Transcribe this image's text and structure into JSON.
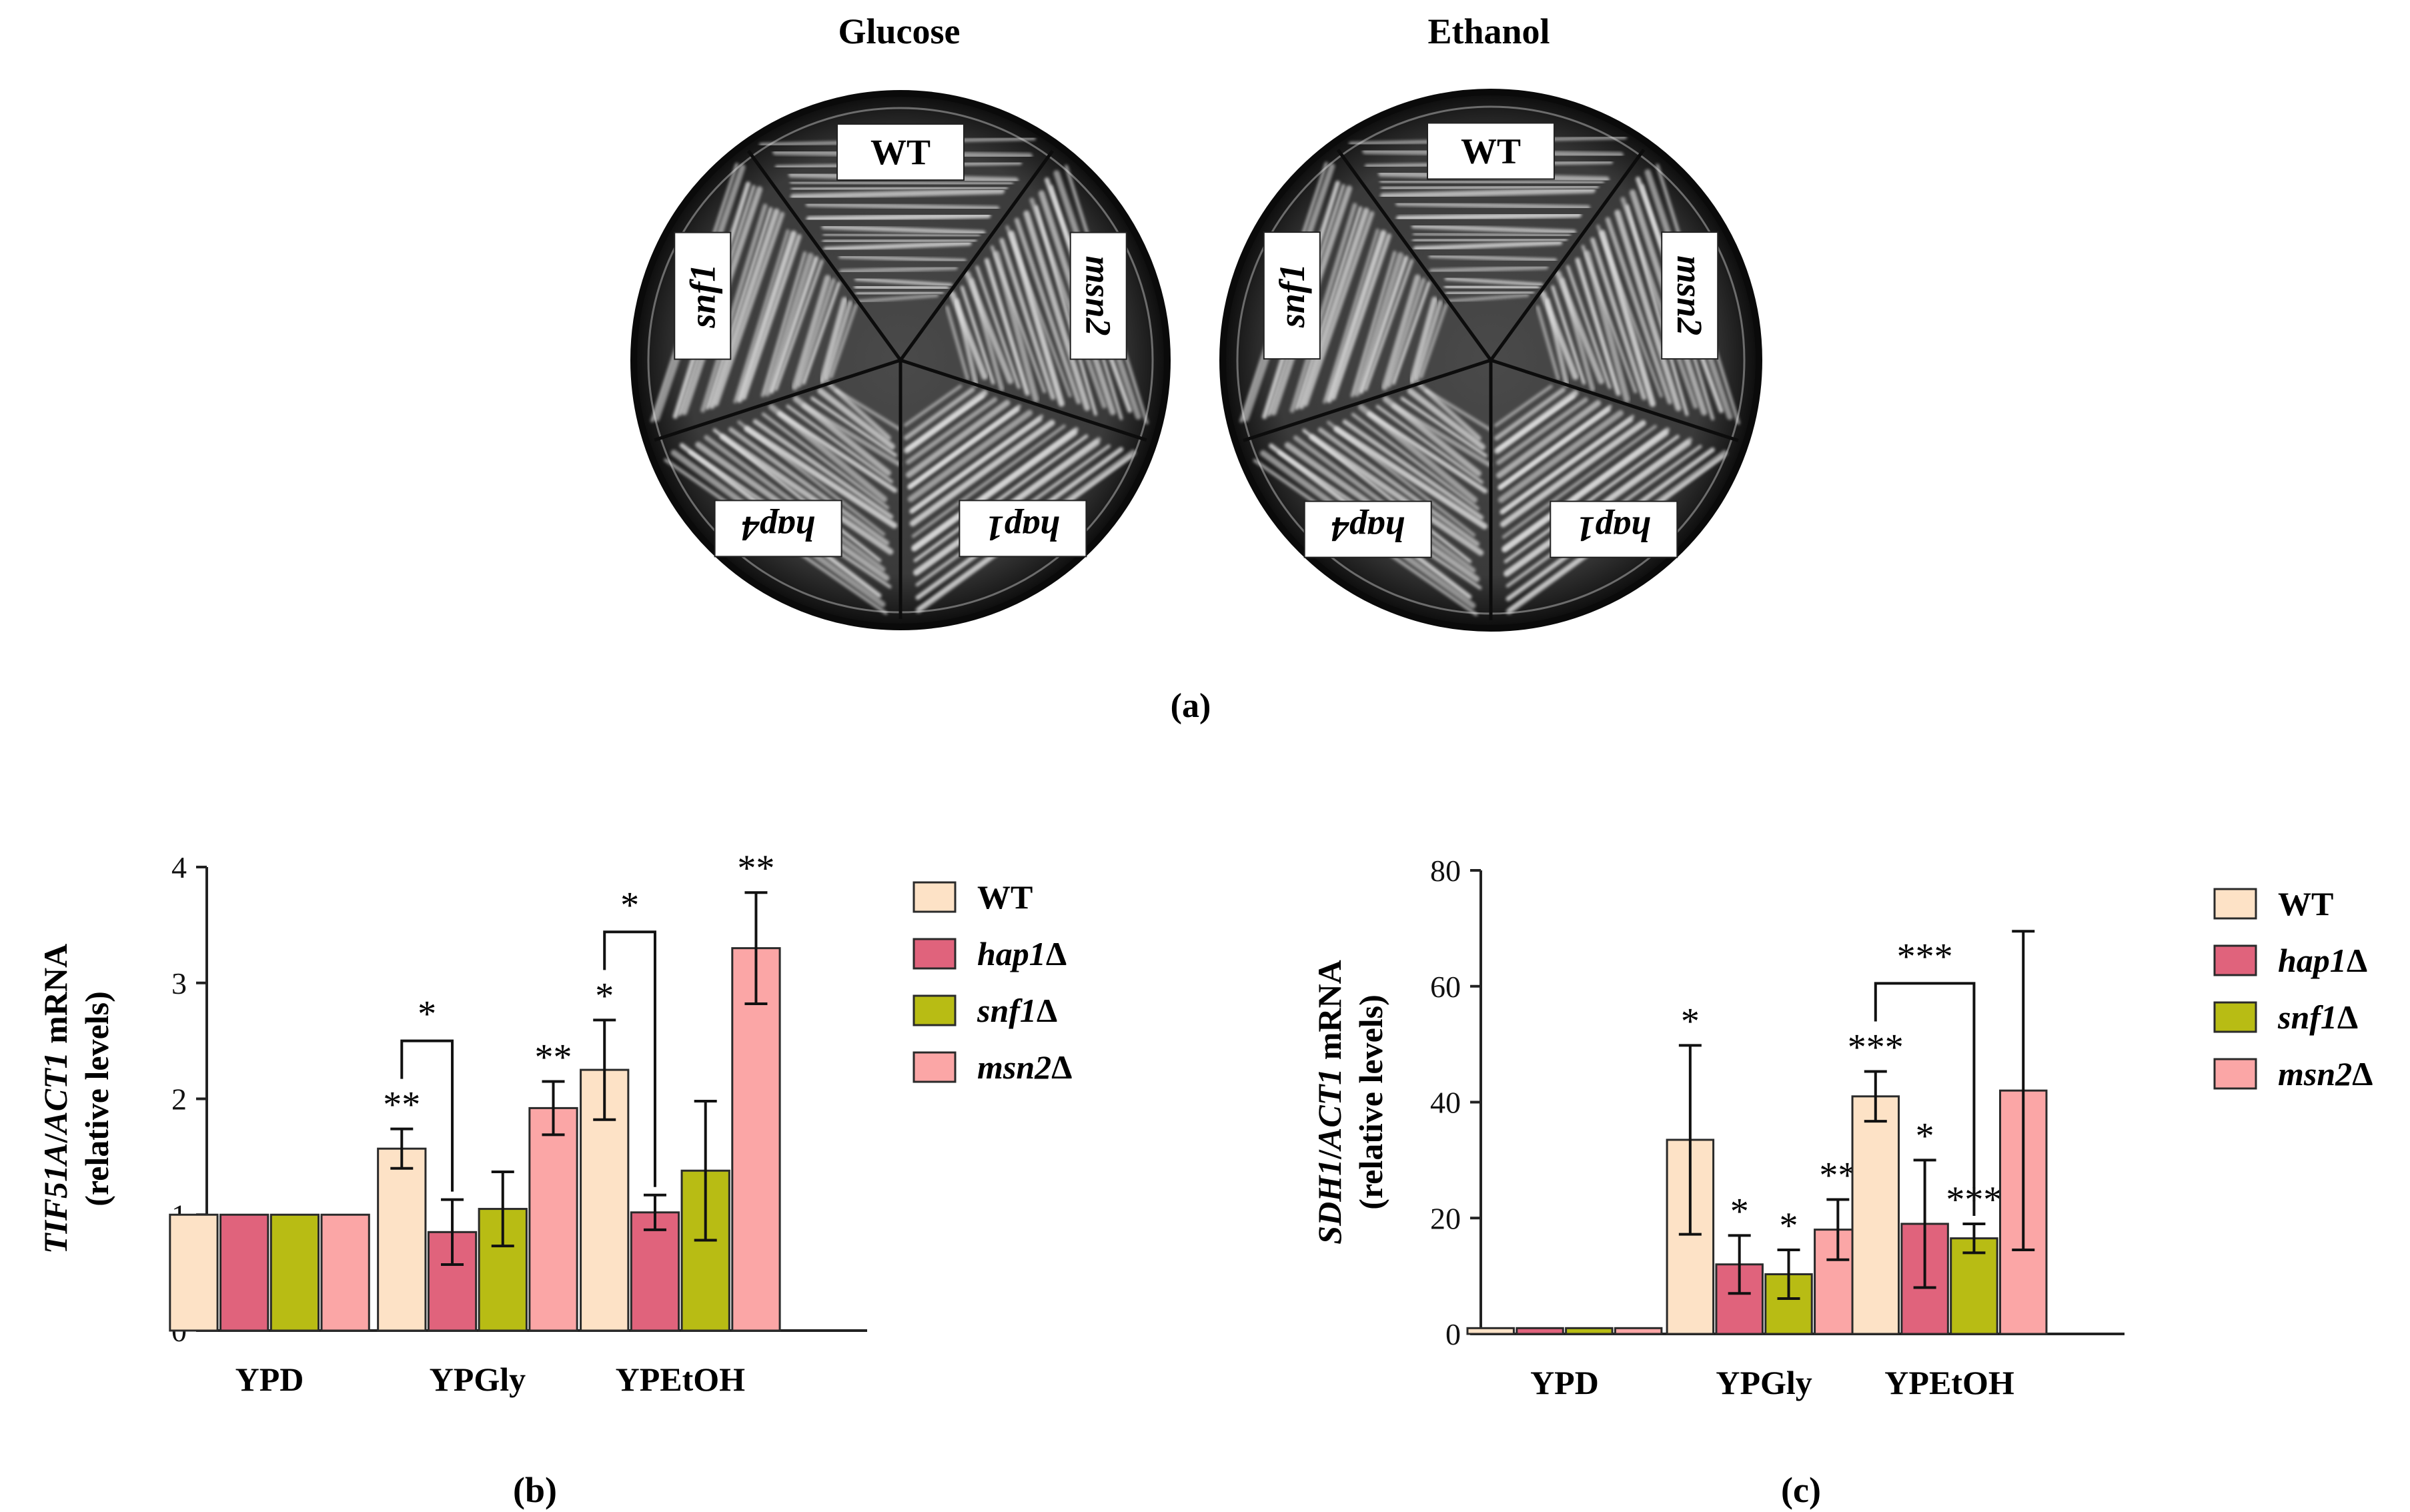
{
  "panel_a": {
    "label": "(a)",
    "plates": [
      {
        "title": "Glucose",
        "sectors": [
          "WT",
          "msn2",
          "hap1",
          "hap4",
          "snf1"
        ]
      },
      {
        "title": "Ethanol",
        "sectors": [
          "WT",
          "msn2",
          "hap1",
          "hap4",
          "snf1"
        ]
      }
    ]
  },
  "colors": {
    "WT": "#fde2c6",
    "hap1": "#e0637c",
    "snf1": "#b8bc14",
    "msn2": "#fba6a6",
    "axis": "#222222"
  },
  "legend": [
    {
      "key": "WT",
      "name": "WT",
      "suffix": ""
    },
    {
      "key": "hap1",
      "name": "hap1",
      "suffix": "Δ"
    },
    {
      "key": "snf1",
      "name": "snf1",
      "suffix": "Δ"
    },
    {
      "key": "msn2",
      "name": "msn2",
      "suffix": "Δ"
    }
  ],
  "chart_data": [
    {
      "panel": "(b)",
      "type": "bar",
      "title": "",
      "ylabel_gene": "TIF51A",
      "ylabel_ref": "ACT1",
      "ylabel_tail": " mRNA",
      "ylabel_line2": "(relative levels)",
      "ylim": [
        0,
        4
      ],
      "yticks": [
        0,
        1,
        2,
        3,
        4
      ],
      "categories": [
        "YPD",
        "YPGly",
        "YPEtOH"
      ],
      "series": [
        {
          "key": "WT",
          "values": [
            1.0,
            1.57,
            2.25
          ],
          "errors": [
            0,
            0.17,
            0.43
          ],
          "stars": [
            "",
            "**",
            "*"
          ]
        },
        {
          "key": "hap1",
          "values": [
            1.0,
            0.85,
            1.02
          ],
          "errors": [
            0,
            0.28,
            0.15
          ],
          "stars": [
            "",
            "",
            ""
          ]
        },
        {
          "key": "snf1",
          "values": [
            1.0,
            1.05,
            1.38
          ],
          "errors": [
            0,
            0.32,
            0.6
          ],
          "stars": [
            "",
            "",
            ""
          ]
        },
        {
          "key": "msn2",
          "values": [
            1.0,
            1.92,
            3.3
          ],
          "errors": [
            0,
            0.23,
            0.48
          ],
          "stars": [
            "",
            "**",
            "**"
          ]
        }
      ],
      "brackets": [
        {
          "category": 1,
          "from": 0,
          "to": 1,
          "label": "*"
        },
        {
          "category": 2,
          "from": 0,
          "to": 1,
          "label": "*"
        }
      ]
    },
    {
      "panel": "(c)",
      "type": "bar",
      "title": "",
      "ylabel_gene": "SDH1",
      "ylabel_ref": "ACT1",
      "ylabel_tail": " mRNA",
      "ylabel_line2": "(relative levels)",
      "ylim": [
        0,
        80
      ],
      "yticks": [
        0,
        20,
        40,
        60,
        80
      ],
      "categories": [
        "YPD",
        "YPGly",
        "YPEtOH"
      ],
      "series": [
        {
          "key": "WT",
          "values": [
            1.0,
            33.5,
            41.0
          ],
          "errors": [
            0,
            16.3,
            4.3
          ],
          "stars": [
            "",
            "*",
            "***"
          ]
        },
        {
          "key": "hap1",
          "values": [
            1.0,
            12.0,
            19.0
          ],
          "errors": [
            0,
            5.0,
            11.0
          ],
          "stars": [
            "",
            "*",
            "*"
          ]
        },
        {
          "key": "snf1",
          "values": [
            1.0,
            10.3,
            16.5
          ],
          "errors": [
            0,
            4.2,
            2.5
          ],
          "stars": [
            "",
            "*",
            "***"
          ]
        },
        {
          "key": "msn2",
          "values": [
            1.0,
            18.0,
            42.0
          ],
          "errors": [
            0,
            5.2,
            27.5
          ],
          "stars": [
            "",
            "**",
            ""
          ]
        }
      ],
      "brackets": [
        {
          "category": 2,
          "from": 0,
          "to": 2,
          "label": "***"
        }
      ]
    }
  ]
}
